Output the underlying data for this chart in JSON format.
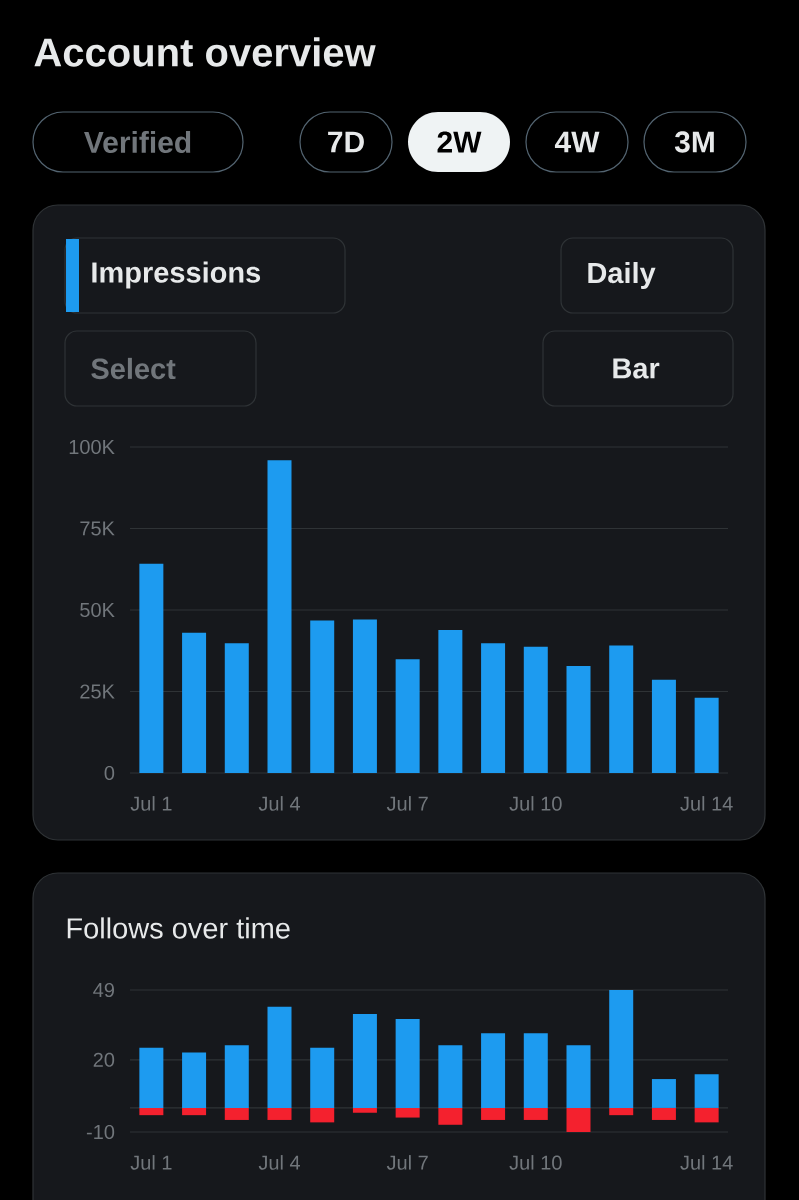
{
  "chart_data": [
    {
      "type": "bar",
      "title": "Impressions",
      "annotations": [
        "Account overview",
        "Verified",
        "7D",
        "2W",
        "4W",
        "3M",
        "Daily",
        "Select",
        "Bar"
      ],
      "categories": [
        "Jul 1",
        null,
        null,
        "Jul 4",
        null,
        null,
        "Jul 7",
        null,
        null,
        "Jul 10",
        null,
        null,
        null,
        "Jul 14"
      ],
      "values": [
        64200,
        43000,
        39800,
        95900,
        46800,
        47100,
        34900,
        43900,
        39800,
        38700,
        32800,
        39100,
        28600,
        23100
      ],
      "color": "#1d9bf0",
      "ylim": [
        0,
        100000
      ],
      "yticks": [
        0,
        {
          "value": 25000,
          "label": "25K"
        },
        {
          "value": 50000,
          "label": "50K"
        },
        {
          "value": 75000,
          "label": "75K"
        },
        {
          "value": 100000,
          "label": "100K"
        }
      ],
      "grid": "y"
    },
    {
      "type": "bar",
      "title": "Follows over time",
      "categories": [
        "Jul 1",
        null,
        null,
        "Jul 4",
        null,
        null,
        "Jul 7",
        null,
        null,
        "Jul 10",
        null,
        null,
        null,
        "Jul 14"
      ],
      "series": [
        {
          "color": "#1d9bf0",
          "values": [
            25,
            23,
            26,
            42,
            25,
            39,
            37,
            26,
            31,
            31,
            26,
            49,
            12,
            14
          ]
        },
        {
          "color": "#f4212e",
          "values": [
            -3,
            -3,
            -5,
            -5,
            -6,
            -2,
            -4,
            -7,
            -5,
            -5,
            -10,
            -3,
            -5,
            -6
          ]
        }
      ],
      "stacked": true,
      "ylim": [
        -10,
        49
      ],
      "yticks": [
        -10,
        {
          "value": 0,
          "label": null
        },
        20,
        49
      ],
      "grid": "y"
    }
  ]
}
